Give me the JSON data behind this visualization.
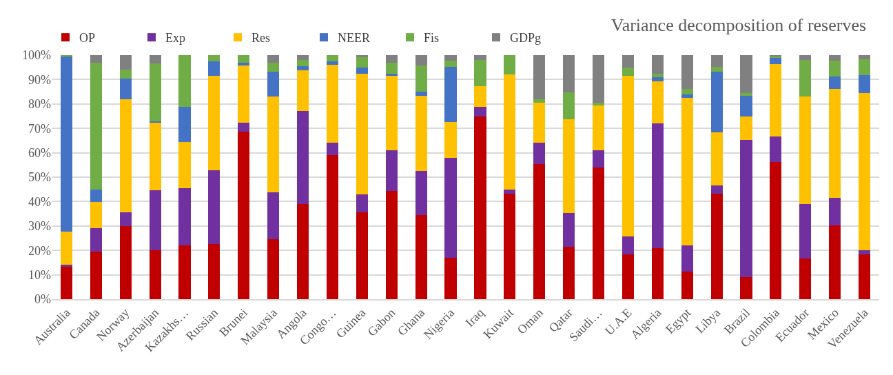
{
  "chart_data": {
    "type": "bar",
    "stacked": true,
    "title": "Variance decomposition of reserves",
    "categories": [
      "Australia",
      "Canada",
      "Norway",
      "Azerbaijan",
      "Kazakhs…",
      "Russian",
      "Brunei",
      "Malaysia",
      "Angola",
      "Congo…",
      "Guinea",
      "Gabon",
      "Ghana",
      "Nigeria",
      "Iraq",
      "Kuwait",
      "Oman",
      "Qatar",
      "Saudi…",
      "U.A.E",
      "Algeria",
      "Egypt",
      "Libya",
      "Brazil",
      "Colombia",
      "Ecuador",
      "Mexico",
      "Venezuela"
    ],
    "series": [
      {
        "name": "OP",
        "color": "#c00000",
        "values": [
          13.3,
          19.4,
          30,
          20,
          22,
          22.6,
          68.6,
          24.7,
          39,
          59,
          35.5,
          44.3,
          34.6,
          17,
          75,
          43.1,
          55.4,
          21.4,
          54,
          18.4,
          20.8,
          11.4,
          43.1,
          9,
          56.3,
          16.7,
          30.1,
          18.4
        ]
      },
      {
        "name": "Exp",
        "color": "#7030a0",
        "values": [
          0.9,
          9.7,
          5.7,
          24.7,
          23.5,
          30.3,
          3.6,
          19,
          38,
          5,
          7.3,
          16.7,
          18,
          41,
          3.7,
          1.7,
          8.8,
          14,
          7.1,
          7.4,
          51.3,
          10.5,
          3.6,
          56.2,
          10.5,
          22.2,
          11.3,
          1.6
        ]
      },
      {
        "name": "Res",
        "color": "#ffc000",
        "values": [
          13.5,
          10.7,
          46.1,
          27.8,
          18.9,
          38.7,
          23.5,
          39.3,
          16.8,
          32,
          49.6,
          30.5,
          30.8,
          14.7,
          8.6,
          47.2,
          16.3,
          38.4,
          18.3,
          65.6,
          17.3,
          60.6,
          21.8,
          9.8,
          29.4,
          44.1,
          44.8,
          64.6
        ]
      },
      {
        "name": "NEER",
        "color": "#4472c4",
        "values": [
          71.6,
          5.2,
          8.5,
          0.5,
          14.3,
          5.9,
          1.3,
          10.2,
          1.8,
          1.5,
          2.5,
          1,
          1.6,
          22.4,
          0,
          0,
          0,
          0,
          0,
          0,
          1.6,
          1.5,
          24.6,
          8.2,
          2.8,
          0,
          5.1,
          7.3
        ]
      },
      {
        "name": "Fis",
        "color": "#70ad47",
        "values": [
          0.7,
          52,
          3.8,
          23.5,
          21.3,
          2.5,
          3,
          3.7,
          2.4,
          2.5,
          4.3,
          4.3,
          10.8,
          2.7,
          10.7,
          8,
          1.5,
          10.9,
          1,
          3.6,
          1.5,
          2.1,
          2,
          1.4,
          0.6,
          14.9,
          6.5,
          6.3
        ]
      },
      {
        "name": "GDPg",
        "color": "#808080",
        "values": [
          0,
          3,
          5.9,
          3.5,
          0,
          0,
          0,
          3.1,
          2,
          0,
          0.8,
          3.2,
          4.2,
          2.2,
          2,
          0,
          18,
          15.3,
          19.6,
          5,
          7.5,
          13.9,
          4.9,
          15.4,
          0.4,
          2.1,
          2.2,
          1.8
        ]
      }
    ],
    "ylim": [
      0,
      100
    ],
    "yticks": [
      {
        "value": 0,
        "label": "0%"
      },
      {
        "value": 10,
        "label": "10%"
      },
      {
        "value": 20,
        "label": "20%"
      },
      {
        "value": 30,
        "label": "30%"
      },
      {
        "value": 40,
        "label": "40%"
      },
      {
        "value": 50,
        "label": "50%"
      },
      {
        "value": 60,
        "label": "60%"
      },
      {
        "value": 70,
        "label": "70%"
      },
      {
        "value": 80,
        "label": "80%"
      },
      {
        "value": 90,
        "label": "90%"
      },
      {
        "value": 100,
        "label": "100%"
      }
    ],
    "grid": "y",
    "legend": "top left"
  }
}
